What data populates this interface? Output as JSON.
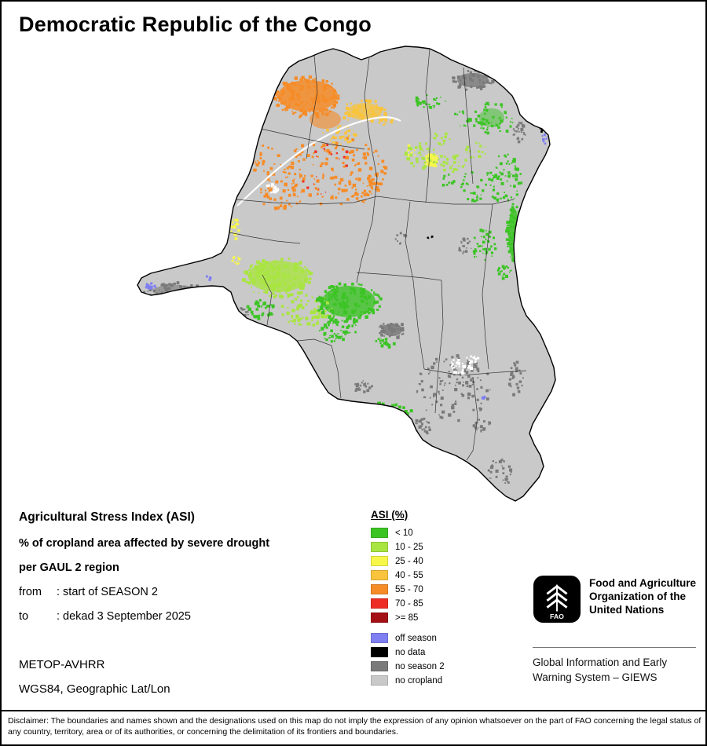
{
  "title": "Democratic Republic of the Congo",
  "info": {
    "heading": "Agricultural Stress Index (ASI)",
    "line1": "% of cropland area affected by severe drought",
    "line2": "per GAUL 2 region",
    "from_label": "from",
    "from_value": ": start of SEASON 2",
    "to_label": "to",
    "to_value": ": dekad 3 September 2025",
    "sensor": "METOP-AVHRR",
    "projection": "WGS84, Geographic Lat/Lon"
  },
  "legend": {
    "title": "ASI (%)",
    "classes": [
      {
        "label": "< 10",
        "color": "#3cc425"
      },
      {
        "label": "10 - 25",
        "color": "#a9e541"
      },
      {
        "label": "25 - 40",
        "color": "#f7f74a"
      },
      {
        "label": "40 - 55",
        "color": "#f9c43c"
      },
      {
        "label": "55 - 70",
        "color": "#f68c28"
      },
      {
        "label": "70 - 85",
        "color": "#ee2e24"
      },
      {
        "label": ">= 85",
        "color": "#a31016"
      }
    ],
    "extras": [
      {
        "label": "off season",
        "color": "#7f7ff2"
      },
      {
        "label": "no data",
        "color": "#000000"
      },
      {
        "label": "no season 2",
        "color": "#7a7a7a"
      },
      {
        "label": "no cropland",
        "color": "#c9c9c9"
      }
    ]
  },
  "fao": {
    "logo_text": "FAO",
    "org": "Food and Agriculture\nOrganization of the\nUnited Nations",
    "giews": "Global Information and Early\nWarning System – GIEWS"
  },
  "disclaimer": "Disclaimer: The boundaries and names shown and the designations used on this map do not imply the expression of any opinion whatsoever on the part of FAO concerning the legal status of any country, territory, area or of its authorities, or concerning the delimitation of its frontiers and boundaries."
}
